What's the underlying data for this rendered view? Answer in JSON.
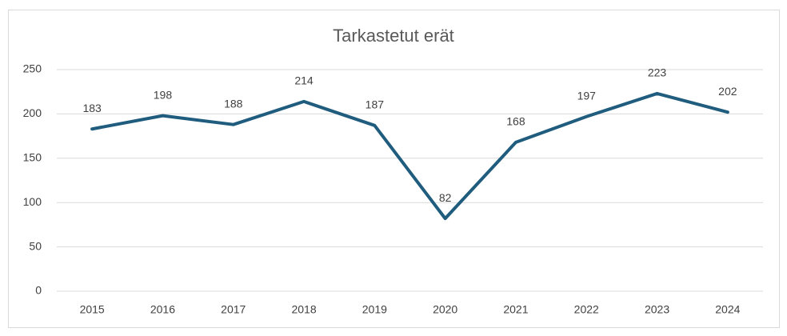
{
  "chart_data": {
    "type": "line",
    "title": "Tarkastetut erät",
    "categories": [
      "2015",
      "2016",
      "2017",
      "2018",
      "2019",
      "2020",
      "2021",
      "2022",
      "2023",
      "2024"
    ],
    "values": [
      183,
      198,
      188,
      214,
      187,
      82,
      168,
      197,
      223,
      202
    ],
    "color": "#1f5c7e",
    "ylim": [
      0,
      250
    ],
    "yticks": [
      0,
      50,
      100,
      150,
      200,
      250
    ],
    "grid": true,
    "data_labels": true
  }
}
